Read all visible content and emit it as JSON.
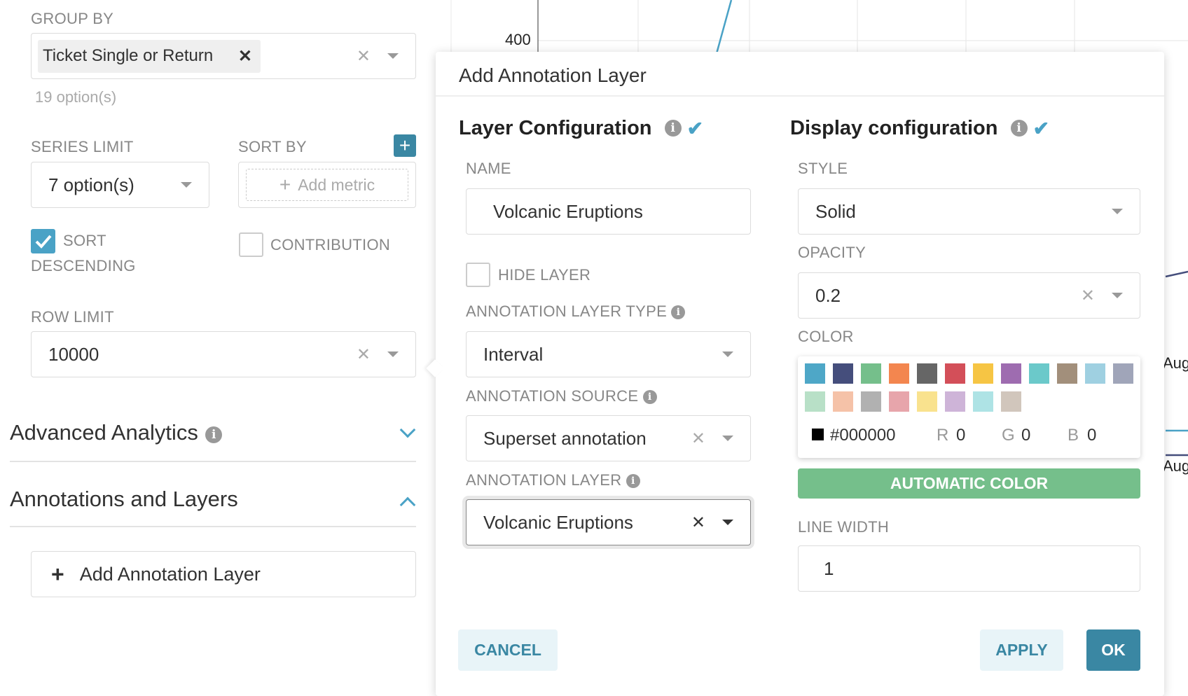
{
  "chart": {
    "y_tick": "400",
    "x_tick_1": "Aug",
    "x_tick_2": "Aug",
    "colors": {
      "line1": "#4aa2c6",
      "line2": "#454e7c"
    }
  },
  "left": {
    "group_by": {
      "label": "GROUP BY",
      "tag": "Ticket Single or Return",
      "options": "19 option(s)"
    },
    "series_limit": {
      "label": "SERIES LIMIT",
      "value": "7 option(s)"
    },
    "sort_by": {
      "label": "SORT BY",
      "placeholder": "Add metric"
    },
    "sort_desc": {
      "label1": "SORT",
      "label2": "DESCENDING",
      "checked": true
    },
    "contribution": {
      "label": "CONTRIBUTION",
      "checked": false
    },
    "row_limit": {
      "label": "ROW LIMIT",
      "value": "10000"
    },
    "advanced": {
      "title": "Advanced Analytics"
    },
    "annotations": {
      "title": "Annotations and Layers",
      "add_button": "Add Annotation Layer"
    }
  },
  "popover": {
    "title": "Add Annotation Layer",
    "layer": {
      "heading": "Layer Configuration",
      "name_label": "NAME",
      "name_value": "Volcanic Eruptions",
      "hide_label": "HIDE LAYER",
      "hide_checked": false,
      "type_label": "ANNOTATION LAYER TYPE",
      "type_value": "Interval",
      "source_label": "ANNOTATION SOURCE",
      "source_value": "Superset annotation",
      "annlayer_label": "ANNOTATION LAYER",
      "annlayer_value": "Volcanic Eruptions"
    },
    "display": {
      "heading": "Display configuration",
      "style_label": "STYLE",
      "style_value": "Solid",
      "opacity_label": "OPACITY",
      "opacity_value": "0.2",
      "color_label": "COLOR",
      "palette": [
        "#4ea7c7",
        "#454e7c",
        "#75bf8b",
        "#f3864f",
        "#666666",
        "#d34f59",
        "#f6c544",
        "#9e6cb0",
        "#6bc9ca",
        "#a28f7b",
        "#9fd0e1",
        "#a0a5b9",
        "#b8e0c7",
        "#f5c2a8",
        "#b1b1b1",
        "#e7a5ab",
        "#f9e28e",
        "#ceb4d8",
        "#aee3e5",
        "#d1c6bc"
      ],
      "hex": "#000000",
      "r_label": "R",
      "r": "0",
      "g_label": "G",
      "g": "0",
      "b_label": "B",
      "b": "0",
      "auto_color": "AUTOMATIC COLOR",
      "line_width_label": "LINE WIDTH",
      "line_width_value": "1"
    },
    "cancel": "CANCEL",
    "apply": "APPLY",
    "ok": "OK",
    "colors": {
      "accent": "#4aa2c6",
      "ok_bg": "#3a87a3",
      "auto_bg": "#75bf8b"
    }
  }
}
